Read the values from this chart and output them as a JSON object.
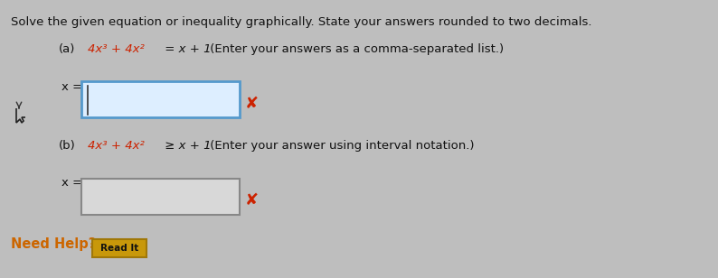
{
  "background_color": "#bebebe",
  "title_text": "Solve the given equation or inequality graphically. State your answers rounded to two decimals.",
  "title_color": "#111111",
  "title_fontsize": 9.5,
  "part_a_label": "(a)",
  "part_a_eq_red": "4x³ + 4x²",
  "part_a_eq_black": " = x + 1",
  "part_a_hint": " (Enter your answers as a comma-separated list.)",
  "part_a_x_label": "x =",
  "part_b_label": "(b)",
  "part_b_eq_red": "4x³ + 4x²",
  "part_b_eq_black": " ≥ x + 1",
  "part_b_hint": " (Enter your answer using interval notation.)",
  "part_b_x_label": "x =",
  "equation_color": "#cc2200",
  "black_color": "#111111",
  "box_a_facecolor": "#ddeeff",
  "box_a_edgecolor": "#5599cc",
  "box_b_facecolor": "#d8d8d8",
  "box_b_edgecolor": "#888888",
  "cross_color": "#cc2200",
  "need_help_color": "#cc6600",
  "read_it_bg": "#c8980a",
  "read_it_edge": "#a07808",
  "read_it_text": "Read It",
  "need_help_text": "Need Help?",
  "figsize": [
    7.94,
    3.08
  ],
  "dpi": 100
}
